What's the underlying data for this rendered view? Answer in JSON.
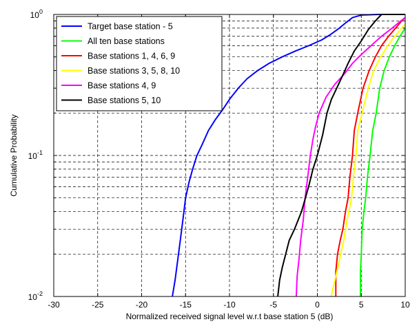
{
  "chart_data": {
    "type": "line",
    "title": "",
    "xlabel": "Normalized received signal level w.r.t base station 5 (dB)",
    "ylabel": "Cumulative Probability",
    "xlim": [
      -30,
      10
    ],
    "ylim": [
      0.01,
      1
    ],
    "yscale": "log",
    "grid": true,
    "legend_position": "top-left",
    "x_ticks": [
      -30,
      -25,
      -20,
      -15,
      -10,
      -5,
      0,
      5,
      10
    ],
    "x_tick_labels": [
      "-30",
      "-25",
      "-20",
      "-15",
      "-10",
      "-5",
      "0",
      "5",
      "10"
    ],
    "y_ticks": [
      0.01,
      0.1,
      1
    ],
    "y_tick_labels": [
      {
        "base": "10",
        "exp": "-2"
      },
      {
        "base": "10",
        "exp": "-1"
      },
      {
        "base": "10",
        "exp": "0"
      }
    ],
    "series": [
      {
        "name": "Target base station - 5",
        "color": "#0000ff",
        "x": [
          -16.5,
          -16.2,
          -15.9,
          -15.6,
          -15.3,
          -15.0,
          -14.6,
          -14.2,
          -13.7,
          -13.1,
          -12.4,
          -11.6,
          -10.8,
          -10.0,
          -9.0,
          -8.0,
          -6.8,
          -5.5,
          -4.0,
          -2.5,
          -1.0,
          0.5,
          1.5,
          2.5,
          3.3,
          4.0,
          5.0,
          7.0,
          10.0
        ],
        "y": [
          0.01,
          0.013,
          0.018,
          0.025,
          0.035,
          0.05,
          0.065,
          0.08,
          0.1,
          0.12,
          0.15,
          0.18,
          0.21,
          0.25,
          0.3,
          0.35,
          0.4,
          0.45,
          0.5,
          0.55,
          0.6,
          0.66,
          0.72,
          0.8,
          0.88,
          0.95,
          0.99,
          1.0,
          1.0
        ]
      },
      {
        "name": "All ten base stations",
        "color": "#00ff00",
        "x": [
          4.9,
          4.9,
          5.0,
          5.1,
          5.3,
          5.5,
          5.7,
          6.0,
          6.3,
          6.7,
          7.1,
          7.6,
          8.2,
          8.8,
          9.4,
          10.0
        ],
        "y": [
          0.01,
          0.015,
          0.02,
          0.03,
          0.04,
          0.05,
          0.07,
          0.1,
          0.15,
          0.2,
          0.3,
          0.4,
          0.5,
          0.6,
          0.7,
          0.8
        ]
      },
      {
        "name": "Base stations 1, 4, 6, 9",
        "color": "#ff0000",
        "x": [
          2.1,
          2.1,
          2.3,
          2.6,
          2.9,
          3.2,
          3.5,
          3.7,
          4.0,
          4.2,
          4.6,
          5.2,
          5.9,
          6.6,
          7.3,
          8.1,
          8.9,
          9.6,
          10.0
        ],
        "y": [
          0.01,
          0.015,
          0.02,
          0.025,
          0.03,
          0.04,
          0.05,
          0.07,
          0.1,
          0.15,
          0.2,
          0.3,
          0.4,
          0.5,
          0.6,
          0.7,
          0.8,
          0.9,
          0.95
        ]
      },
      {
        "name": "Base stations 3, 5, 8, 10",
        "color": "#ffff00",
        "x": [
          1.6,
          1.7,
          2.0,
          2.5,
          3.0,
          3.4,
          3.9,
          4.1,
          4.4,
          4.6,
          5.1,
          5.8,
          6.4,
          7.2,
          8.0,
          8.8,
          9.6,
          10.0
        ],
        "y": [
          0.01,
          0.011,
          0.013,
          0.018,
          0.025,
          0.035,
          0.05,
          0.07,
          0.1,
          0.15,
          0.2,
          0.3,
          0.4,
          0.5,
          0.6,
          0.7,
          0.8,
          0.85
        ]
      },
      {
        "name": "Base stations 4, 9",
        "color": "#ff00ff",
        "x": [
          -2.4,
          -2.3,
          -2.1,
          -1.9,
          -1.6,
          -1.4,
          -1.1,
          -0.8,
          -0.5,
          -0.2,
          0.2,
          1.0,
          2.0,
          3.1,
          4.0,
          5.0,
          6.1,
          7.3,
          8.5,
          9.5,
          10.0
        ],
        "y": [
          0.01,
          0.014,
          0.018,
          0.025,
          0.035,
          0.05,
          0.07,
          0.1,
          0.13,
          0.16,
          0.2,
          0.26,
          0.32,
          0.38,
          0.45,
          0.52,
          0.6,
          0.7,
          0.8,
          0.9,
          0.95
        ]
      },
      {
        "name": "Base stations 5, 10",
        "color": "#000000",
        "x": [
          -4.5,
          -4.3,
          -4.0,
          -3.6,
          -3.2,
          -2.6,
          -1.8,
          -1.0,
          -0.5,
          0.0,
          0.6,
          1.1,
          1.6,
          2.2,
          2.8,
          3.5,
          4.2,
          5.0,
          5.8,
          6.6,
          7.3,
          10.0
        ],
        "y": [
          0.01,
          0.013,
          0.016,
          0.02,
          0.025,
          0.03,
          0.04,
          0.06,
          0.08,
          0.1,
          0.14,
          0.2,
          0.25,
          0.3,
          0.36,
          0.45,
          0.55,
          0.65,
          0.78,
          0.9,
          1.0,
          1.0
        ]
      }
    ]
  }
}
